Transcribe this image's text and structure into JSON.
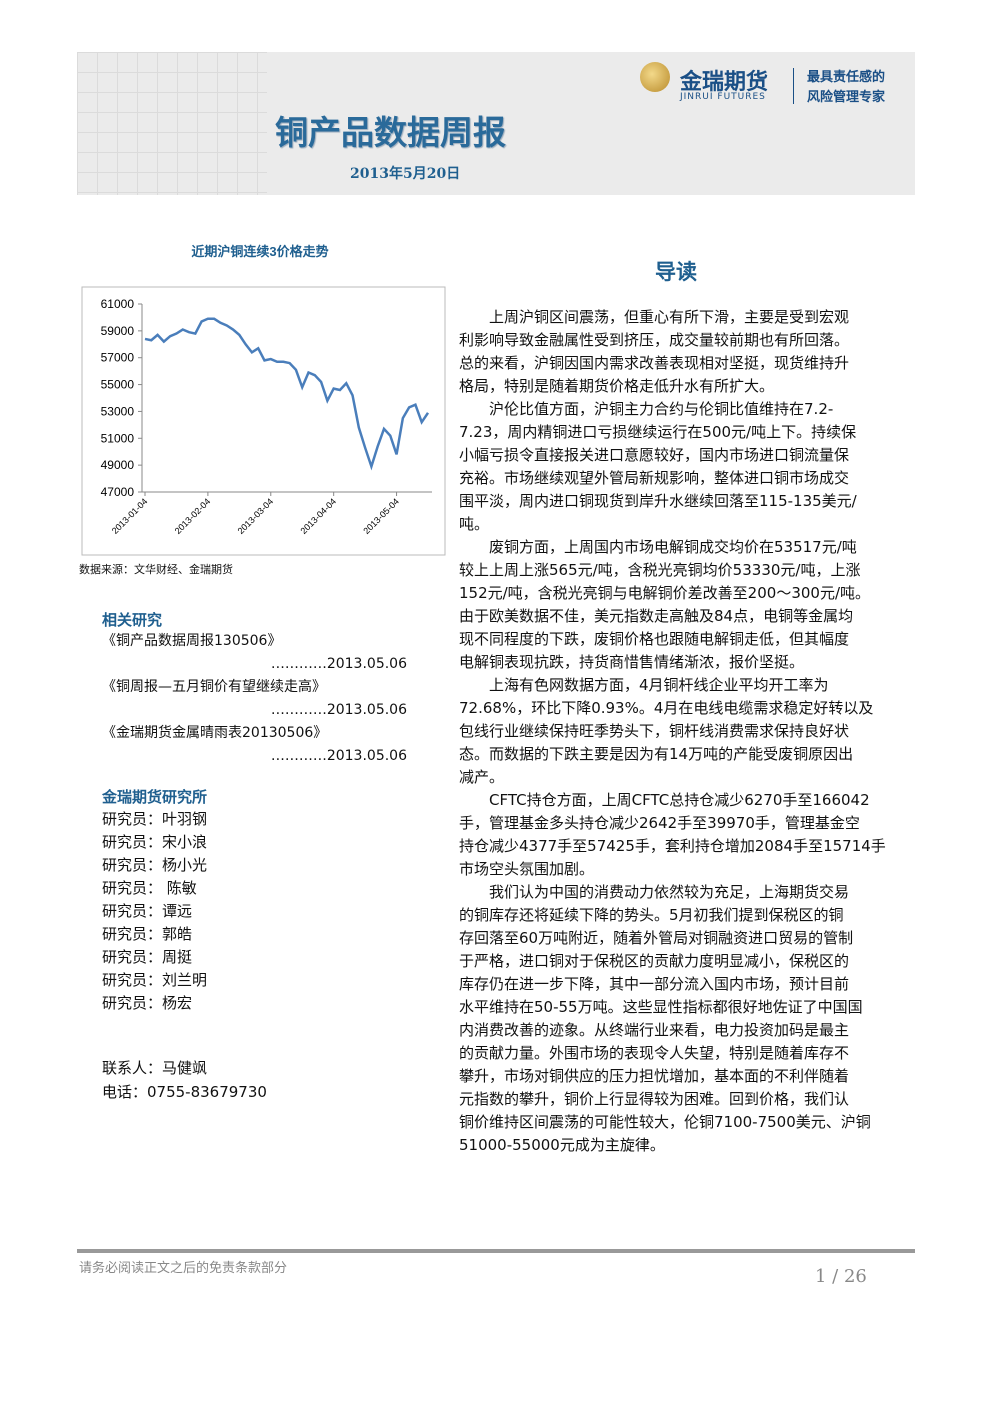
{
  "header": {
    "logo_name": "金瑞期货",
    "logo_en": "JINRUI FUTURES",
    "slogan": [
      "最具责任感的",
      "风险管理专家"
    ],
    "title": "铜产品数据周报",
    "date": "2013年5月20日"
  },
  "chart_data": {
    "type": "line",
    "title": "近期沪铜连续3价格走势",
    "categories": [
      "2013-01-04",
      null,
      null,
      null,
      null,
      null,
      null,
      null,
      null,
      null,
      "2013-02-04",
      null,
      null,
      null,
      null,
      null,
      null,
      null,
      null,
      null,
      "2013-03-04",
      null,
      null,
      null,
      null,
      null,
      null,
      null,
      null,
      null,
      "2013-04-04",
      null,
      null,
      null,
      null,
      null,
      null,
      null,
      null,
      null,
      "2013-05-04",
      null,
      null,
      null,
      null,
      null
    ],
    "series": [
      {
        "color": "#4a7ebb",
        "values": [
          58400,
          58300,
          58700,
          58200,
          58600,
          58800,
          59100,
          58900,
          58800,
          59700,
          59900,
          59900,
          59600,
          59400,
          59100,
          58700,
          58000,
          57400,
          57700,
          56800,
          56900,
          56700,
          56700,
          56600,
          56100,
          54800,
          55900,
          55700,
          55200,
          53800,
          54700,
          54600,
          55100,
          54200,
          51800,
          50300,
          48900,
          50400,
          51700,
          51200,
          49800,
          52500,
          53300,
          53500,
          52200,
          52900
        ]
      }
    ],
    "ylim": [
      47000,
      61000
    ],
    "yticks": [
      47000,
      49000,
      51000,
      53000,
      55000,
      57000,
      59000,
      61000
    ],
    "grid": false,
    "source": "数据来源：文华财经、金瑞期货"
  },
  "related": {
    "title": "相关研究",
    "items": [
      {
        "name": "《铜产品数据周报130506》",
        "date": "…………2013.05.06"
      },
      {
        "name": "《铜周报—五月铜价有望继续走高》",
        "date": "…………2013.05.06"
      },
      {
        "name": "《金瑞期货金属晴雨表20130506》",
        "date": "…………2013.05.06"
      }
    ]
  },
  "institute": {
    "title": "金瑞期货研究所",
    "researchers": [
      "研究员：叶羽钢",
      "研究员：宋小浪",
      "研究员：杨小光",
      "研究员： 陈敏",
      "研究员：谭远",
      "研究员：郭皓",
      "研究员：周挺",
      "研究员：刘兰明",
      "研究员：杨宏"
    ],
    "contact": "联系人：马健飒",
    "phone": "电话：0755-83679730"
  },
  "intro": {
    "title": "导读",
    "paragraphs": [
      [
        "上周沪铜区间震荡，但重心有所下滑，主要是受到宏观",
        "利影响导致金融属性受到挤压，成交量较前期也有所回落。",
        "总的来看，沪铜因国内需求改善表现相对坚挺，现货维持升",
        "格局，特别是随着期货价格走低升水有所扩大。"
      ],
      [
        "沪伦比值方面，沪铜主力合约与伦铜比值维持在7.2-",
        "7.23，周内精铜进口亏损继续运行在500元/吨上下。持续保",
        "小幅亏损令直接报关进口意愿较好，国内市场进口铜流量保",
        "充裕。市场继续观望外管局新规影响，整体进口铜市场成交",
        "围平淡，周内进口铜现货到岸升水继续回落至115-135美元/",
        "吨。"
      ],
      [
        "废铜方面，上周国内市场电解铜成交均价在53517元/吨",
        "较上上周上涨565元/吨，含税光亮铜均价53330元/吨，上涨",
        "152元/吨，含税光亮铜与电解铜价差改善至200～300元/吨。",
        "由于欧美数据不佳，美元指数走高触及84点，电铜等金属均",
        "现不同程度的下跌，废铜价格也跟随电解铜走低，但其幅度",
        "电解铜表现抗跌，持货商惜售情绪渐浓，报价坚挺。"
      ],
      [
        "上海有色网数据方面，4月铜杆线企业平均开工率为",
        "72.68%，环比下降0.93%。4月在电线电缆需求稳定好转以及",
        "包线行业继续保持旺季势头下，铜杆线消费需求保持良好状",
        "态。而数据的下跌主要是因为有14万吨的产能受废铜原因出",
        "减产。"
      ],
      [
        "CFTC持仓方面，上周CFTC总持仓减少6270手至166042",
        "手，管理基金多头持仓减少2642手至39970手，管理基金空",
        "持仓减少4377手至57425手，套利持仓增加2084手至15714手",
        "市场空头氛围加剧。"
      ],
      [
        "我们认为中国的消费动力依然较为充足，上海期货交易",
        "的铜库存还将延续下降的势头。5月初我们提到保税区的铜",
        "存回落至60万吨附近，随着外管局对铜融资进口贸易的管制",
        "于严格，进口铜对于保税区的贡献力度明显减小，保税区的",
        "库存仍在进一步下降，其中一部分流入国内市场，预计目前",
        "水平维持在50-55万吨。这些显性指标都很好地佐证了中国国",
        "内消费改善的迹象。从终端行业来看，电力投资加码是最主",
        "的贡献力量。外围市场的表现令人失望，特别是随着库存不",
        "攀升，市场对铜供应的压力担忧增加，基本面的不利伴随着",
        "元指数的攀升，铜价上行显得较为困难。回到价格，我们认",
        "铜价维持区间震荡的可能性较大，伦铜7100-7500美元、沪铜",
        "51000-55000元成为主旋律。"
      ]
    ]
  },
  "footer": {
    "disclaimer": "请务必阅读正文之后的免责条款部分",
    "page": "1 / 26"
  }
}
